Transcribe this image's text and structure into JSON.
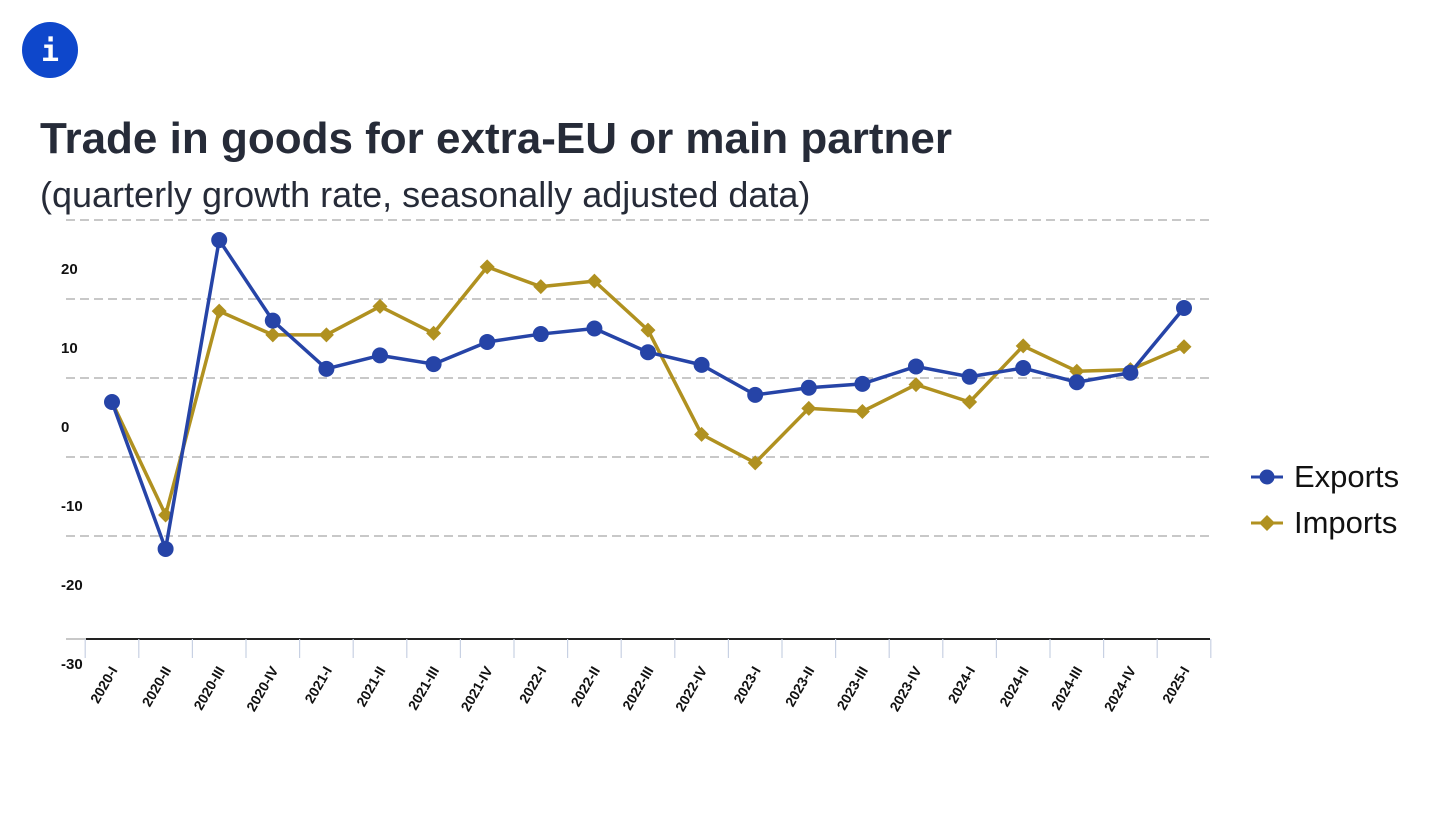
{
  "info_button": {
    "icon": "info-icon",
    "glyph": "i",
    "color": "#0e47cb"
  },
  "header": {
    "title": "Trade in goods for extra-EU or main partner",
    "subtitle": "(quarterly growth rate, seasonally adjusted data)"
  },
  "chart_data": {
    "type": "line",
    "title": "Trade in goods for extra-EU or main partner",
    "subtitle": "(quarterly growth rate, seasonally adjusted data)",
    "xlabel": "",
    "ylabel": "",
    "ylim": [
      -30,
      20
    ],
    "yticks": [
      20,
      10,
      0,
      -10,
      -20,
      -30
    ],
    "ytick_labels": [
      "20",
      "10",
      "0",
      "-10",
      "-20",
      "-30"
    ],
    "grid": true,
    "legend_position": "right",
    "categories": [
      "2020-I",
      "2020-II",
      "2020-III",
      "2020-IV",
      "2021-I",
      "2021-II",
      "2021-III",
      "2021-IV",
      "2022-I",
      "2022-II",
      "2022-III",
      "2022-IV",
      "2023-I",
      "2023-II",
      "2023-III",
      "2023-IV",
      "2024-I",
      "2024-II",
      "2024-III",
      "2024-IV",
      "2025-I"
    ],
    "series": [
      {
        "name": "Exports",
        "color": "#2644a7",
        "marker": "circle",
        "values": [
          0.0,
          -18.6,
          20.5,
          10.3,
          4.2,
          5.9,
          4.8,
          7.6,
          8.6,
          9.3,
          6.3,
          4.7,
          0.9,
          1.8,
          2.3,
          4.5,
          3.2,
          4.3,
          2.5,
          3.7,
          11.9
        ]
      },
      {
        "name": "Imports",
        "color": "#b09120",
        "marker": "diamond",
        "values": [
          0.0,
          -14.3,
          11.5,
          8.5,
          8.5,
          12.1,
          8.7,
          17.1,
          14.6,
          15.3,
          9.1,
          -4.1,
          -7.7,
          -0.8,
          -1.2,
          2.2,
          0.0,
          7.1,
          3.9,
          4.1,
          7.0
        ]
      }
    ]
  }
}
